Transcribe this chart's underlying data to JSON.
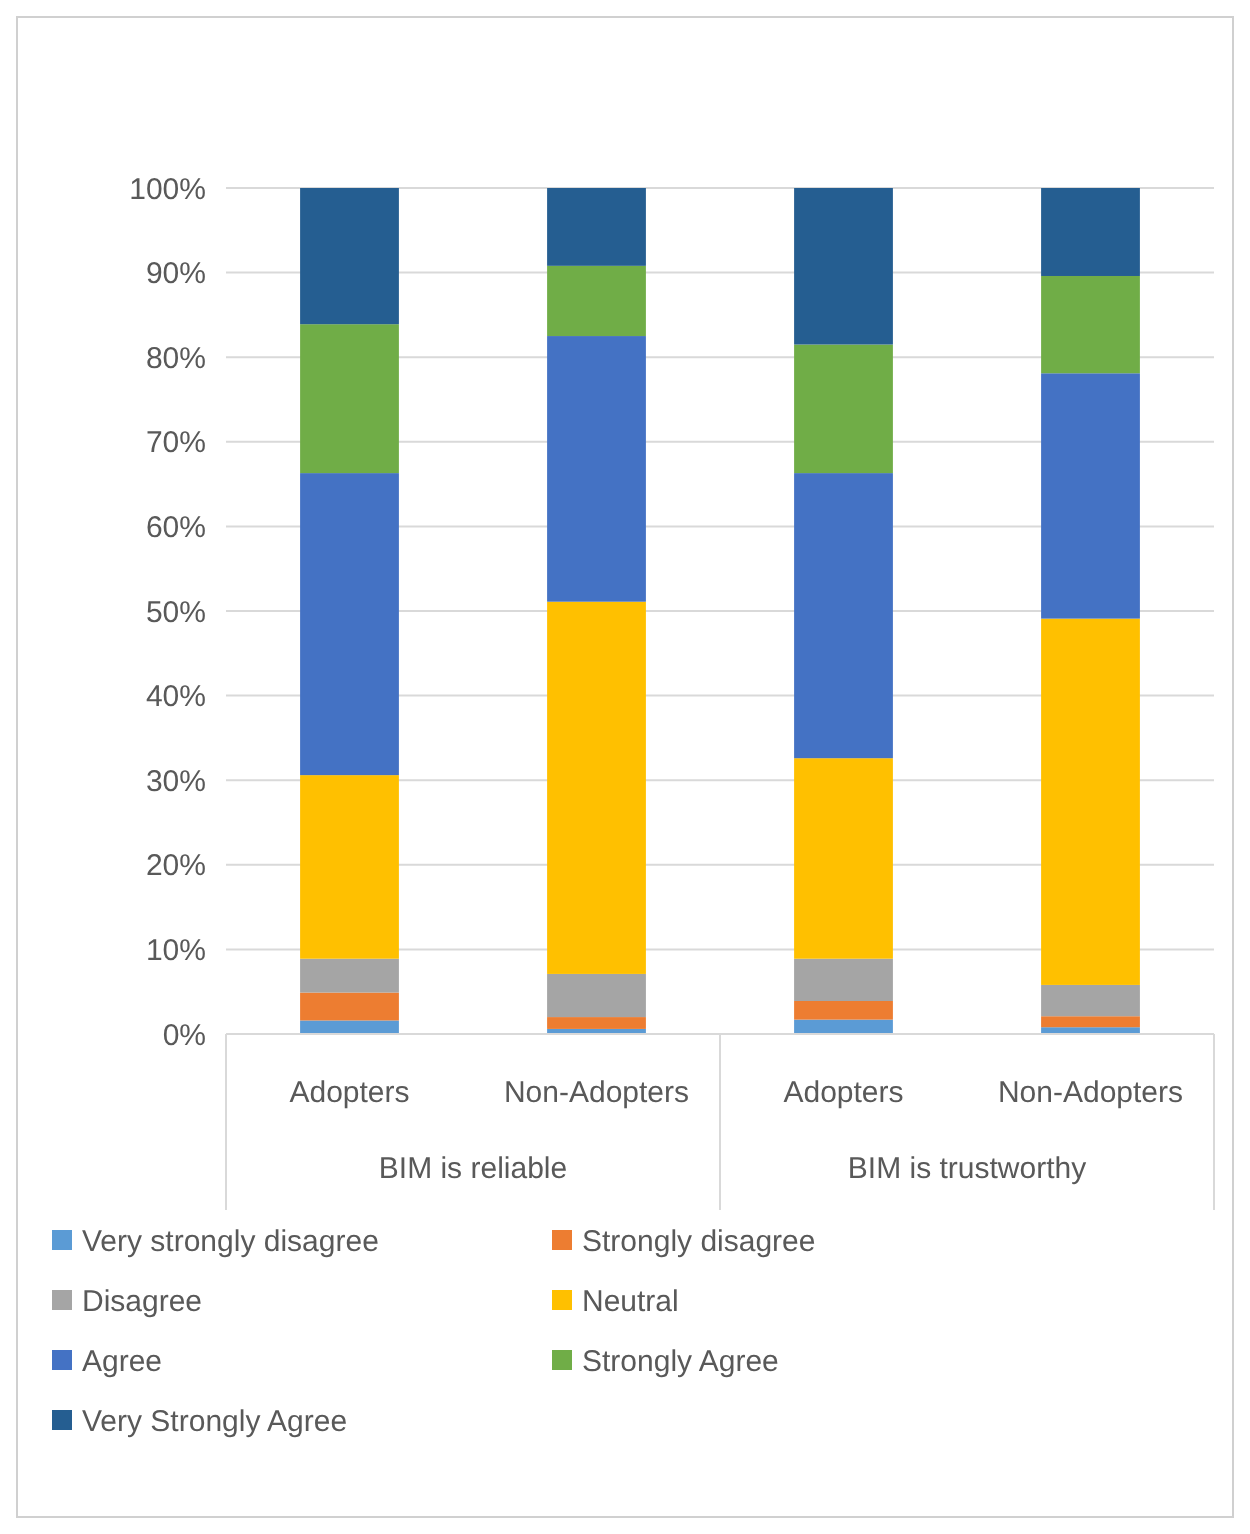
{
  "chart_data": {
    "type": "bar",
    "stacked": true,
    "categories": [
      "Adopters",
      "Non-Adopters",
      "Adopters",
      "Non-Adopters"
    ],
    "annotations": [
      "BIM is reliable",
      "BIM is trustworthy"
    ],
    "ylim": [
      0,
      100
    ],
    "yticks": [
      {
        "value": 0,
        "label": "0%"
      },
      {
        "value": 10,
        "label": "10%"
      },
      {
        "value": 20,
        "label": "20%"
      },
      {
        "value": 30,
        "label": "30%"
      },
      {
        "value": 40,
        "label": "40%"
      },
      {
        "value": 50,
        "label": "50%"
      },
      {
        "value": 60,
        "label": "60%"
      },
      {
        "value": 70,
        "label": "70%"
      },
      {
        "value": 80,
        "label": "80%"
      },
      {
        "value": 90,
        "label": "90%"
      },
      {
        "value": 100,
        "label": "100%"
      }
    ],
    "grid": "y",
    "legend": "bottom",
    "series": [
      {
        "name": "Very strongly disagree",
        "color": "#5b9bd5",
        "values": [
          1.6,
          0.6,
          1.7,
          0.8
        ]
      },
      {
        "name": "Strongly disagree",
        "color": "#ed7d31",
        "values": [
          3.3,
          1.4,
          2.2,
          1.3
        ]
      },
      {
        "name": "Disagree",
        "color": "#a5a5a5",
        "values": [
          4.0,
          5.1,
          5.0,
          3.7
        ]
      },
      {
        "name": "Neutral",
        "color": "#ffc000",
        "values": [
          21.7,
          44.0,
          23.7,
          43.3
        ]
      },
      {
        "name": "Agree",
        "color": "#4472c4",
        "values": [
          35.7,
          31.4,
          33.7,
          29.0
        ]
      },
      {
        "name": "Strongly Agree",
        "color": "#70ad47",
        "values": [
          17.6,
          8.3,
          15.2,
          11.5
        ]
      },
      {
        "name": "Very Strongly Agree",
        "color": "#255e91",
        "values": [
          16.1,
          9.2,
          18.5,
          10.4
        ]
      }
    ]
  }
}
